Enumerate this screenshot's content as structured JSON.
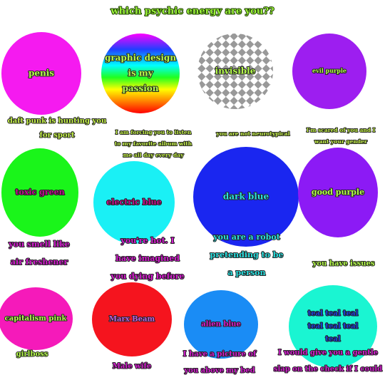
{
  "header": {
    "title": "which psychic energy are you??"
  },
  "items": [
    {
      "label": [
        "penis"
      ],
      "color": "#f51af0",
      "label_color": "#b6ff4a",
      "caption": [
        "daft punk is hunting you",
        "for sport"
      ],
      "caption_color": "#c8f54a"
    },
    {
      "label": [
        "graphic design",
        "is my",
        "passion"
      ],
      "label_color": "#b6ff4a",
      "caption": [
        "I am forcing you to listen",
        "to my favorite album with",
        "me all day every day"
      ],
      "caption_color": "#c8f54a"
    },
    {
      "label": [
        "invisible"
      ],
      "label_color": "#b6ff4a",
      "caption": [
        "you are not neurotypical"
      ],
      "caption_color": "#c8f54a"
    },
    {
      "label": [
        "evil purple"
      ],
      "color": "#9d1ef0",
      "label_color": "#b6ff4a",
      "caption": [
        "I'm scared of you and I",
        "want your gender"
      ],
      "caption_color": "#c8f54a"
    },
    {
      "label": [
        "toxic green"
      ],
      "color": "#1af51a",
      "label_color": "#c4108e",
      "caption": [
        "you smell like",
        "air freshener"
      ],
      "caption_color": "#d51ad0"
    },
    {
      "label": [
        "electric blue"
      ],
      "color": "#1af0f5",
      "label_color": "#c4108e",
      "caption": [
        "you're hot. I",
        "have imagined",
        "you dying before"
      ],
      "caption_color": "#d51ad0"
    },
    {
      "label": [
        "dark blue"
      ],
      "color": "#1a26f0",
      "label_color": "#2ae0e0",
      "caption": [
        "you are a robot",
        "pretending to be",
        "a person"
      ],
      "caption_color": "#2ae0e0"
    },
    {
      "label": [
        "good purple"
      ],
      "color": "#8c1af5",
      "label_color": "#b6ff4a",
      "caption": [
        "you have issues"
      ],
      "caption_color": "#b6ff4a"
    },
    {
      "label": [
        "capitalism pink"
      ],
      "color": "#f51aba",
      "label_color": "#b6ff4a",
      "caption": [
        "girlboss"
      ],
      "caption_color": "#b6ff4a"
    },
    {
      "label": [
        "Marx Beam"
      ],
      "color": "#f5141e",
      "label_color": "#c060e0",
      "caption": [
        "Male wife"
      ],
      "caption_color": "#d51ad0"
    },
    {
      "label": [
        "alien blue"
      ],
      "color": "#1a8cf5",
      "label_color": "#d51ad0",
      "caption": [
        "I have a picture of",
        "you above my bed"
      ],
      "caption_color": "#d51ad0"
    },
    {
      "label": [
        "teal teal teal",
        "teal teal teal",
        "teal"
      ],
      "color": "#1af5d2",
      "label_color": "#1a40e0",
      "caption": [
        "I would give you a gentle",
        "slap on the check if I could"
      ],
      "caption_color": "#d51ad0"
    }
  ]
}
